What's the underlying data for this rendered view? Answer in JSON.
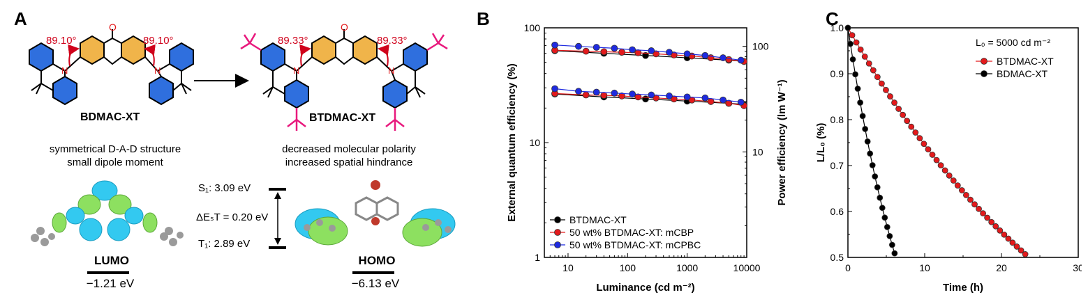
{
  "panel_a": {
    "letter": "A",
    "molecule_left": {
      "name": "BDMAC-XT",
      "angle_left": "89.10°",
      "angle_right": "89.10°",
      "caption_line1": "symmetrical D-A-D structure",
      "caption_line2": "small dipole moment"
    },
    "molecule_right": {
      "name": "BTDMAC-XT",
      "angle_left": "89.33°",
      "angle_right": "89.33°",
      "caption_line1": "decreased molecular polarity",
      "caption_line2": "increased spatial hindrance"
    },
    "atom_label_N": "N",
    "atom_label_O": "O",
    "energy_levels": {
      "s1": "S₁: 3.09 eV",
      "dest": "ΔEₛT = 0.20 eV",
      "t1": "T₁: 2.89 eV"
    },
    "lumo": {
      "label": "LUMO",
      "value": "−1.21 eV"
    },
    "homo": {
      "label": "HOMO",
      "value": "−6.13 eV"
    },
    "colors": {
      "donor": "#2f6fde",
      "acceptor": "#f0b44a",
      "tbutyl": "#e8197d",
      "angle": "#d0021b",
      "orbital_pos": "#33c9f0",
      "orbital_neg": "#8de060"
    }
  },
  "panel_b": {
    "letter": "B",
    "chart_data": {
      "type": "scatter",
      "xlabel": "Luminance (cd m⁻²)",
      "ylabel": "External quantum efficiency (%)",
      "y2label": "Power efficiency (lm W⁻¹)",
      "xscale": "log",
      "yscale": "log",
      "xlim": [
        4,
        10000
      ],
      "ylim": [
        1,
        100
      ],
      "y2lim": [
        1,
        150
      ],
      "x_ticks": [
        "10",
        "100",
        "1000",
        "10000"
      ],
      "y_ticks": [
        "1",
        "10",
        "100"
      ],
      "y2_ticks": [
        "10",
        "100"
      ],
      "legend": [
        "BTDMAC-XT",
        "50 wt% BTDMAC-XT: mCBP",
        "50 wt% BTDMAC-XT: mCPBC"
      ],
      "legend_position": "bottom-left",
      "series": [
        {
          "name": "BTDMAC-XT",
          "color": "#000000",
          "axis": "eqe",
          "x": [
            6,
            40,
            200,
            1000,
            5000,
            9000
          ],
          "y": [
            26.5,
            25.0,
            24.0,
            23.0,
            22.0,
            21.5
          ]
        },
        {
          "name": "50 wt% BTDMAC-XT: mCBP",
          "color": "#e31a1c",
          "axis": "eqe",
          "x": [
            6,
            20,
            40,
            80,
            150,
            300,
            600,
            1200,
            2500,
            5000,
            9000
          ],
          "y": [
            26.8,
            26.0,
            25.8,
            25.5,
            25.0,
            24.5,
            24.0,
            23.5,
            22.8,
            22.0,
            21.0
          ]
        },
        {
          "name": "50 wt% BTDMAC-XT: mCPBC",
          "color": "#1f2be0",
          "axis": "eqe",
          "x": [
            6,
            15,
            30,
            60,
            120,
            250,
            500,
            1000,
            2000,
            4000,
            8000
          ],
          "y": [
            29.5,
            28.0,
            27.5,
            27.0,
            26.5,
            26.0,
            25.5,
            25.0,
            24.5,
            23.5,
            22.5
          ]
        },
        {
          "name": "BTDMAC-XT",
          "color": "#000000",
          "axis": "pe",
          "x": [
            6,
            40,
            200,
            1000,
            5000,
            9000
          ],
          "y": [
            91,
            86,
            82,
            78,
            74,
            72
          ]
        },
        {
          "name": "50 wt% BTDMAC-XT: mCBP",
          "color": "#e31a1c",
          "axis": "pe",
          "x": [
            6,
            20,
            40,
            80,
            150,
            300,
            600,
            1200,
            2500,
            5000,
            9000
          ],
          "y": [
            92,
            90,
            89,
            88,
            87,
            85,
            83,
            81,
            78,
            75,
            72
          ]
        },
        {
          "name": "50 wt% BTDMAC-XT: mCPBC",
          "color": "#1f2be0",
          "axis": "pe",
          "x": [
            6,
            15,
            30,
            60,
            120,
            250,
            500,
            1000,
            2000,
            4000,
            8000
          ],
          "y": [
            103,
            100,
            98,
            96,
            93,
            91,
            88,
            85,
            82,
            78,
            74
          ]
        }
      ]
    }
  },
  "panel_c": {
    "letter": "C",
    "chart_data": {
      "type": "line",
      "xlabel": "Time (h)",
      "ylabel": "L/L₀ (%)",
      "xlim": [
        0,
        30
      ],
      "ylim": [
        0.5,
        1.0
      ],
      "x_ticks": [
        "0",
        "10",
        "20",
        "30"
      ],
      "y_ticks": [
        "0.5",
        "0.6",
        "0.7",
        "0.8",
        "0.9",
        "1.0"
      ],
      "annotation": "L₀ = 5000 cd m⁻²",
      "legend": [
        "BTDMAC-XT",
        "BDMAC-XT"
      ],
      "legend_position": "top-right",
      "series": [
        {
          "name": "BTDMAC-XT",
          "color": "#e31a1c",
          "decay_tau": 34.0,
          "t_end": 23.5,
          "step": 0.55
        },
        {
          "name": "BDMAC-XT",
          "color": "#000000",
          "decay_tau": 9.0,
          "t_end": 6.2,
          "step": 0.32
        }
      ]
    }
  }
}
